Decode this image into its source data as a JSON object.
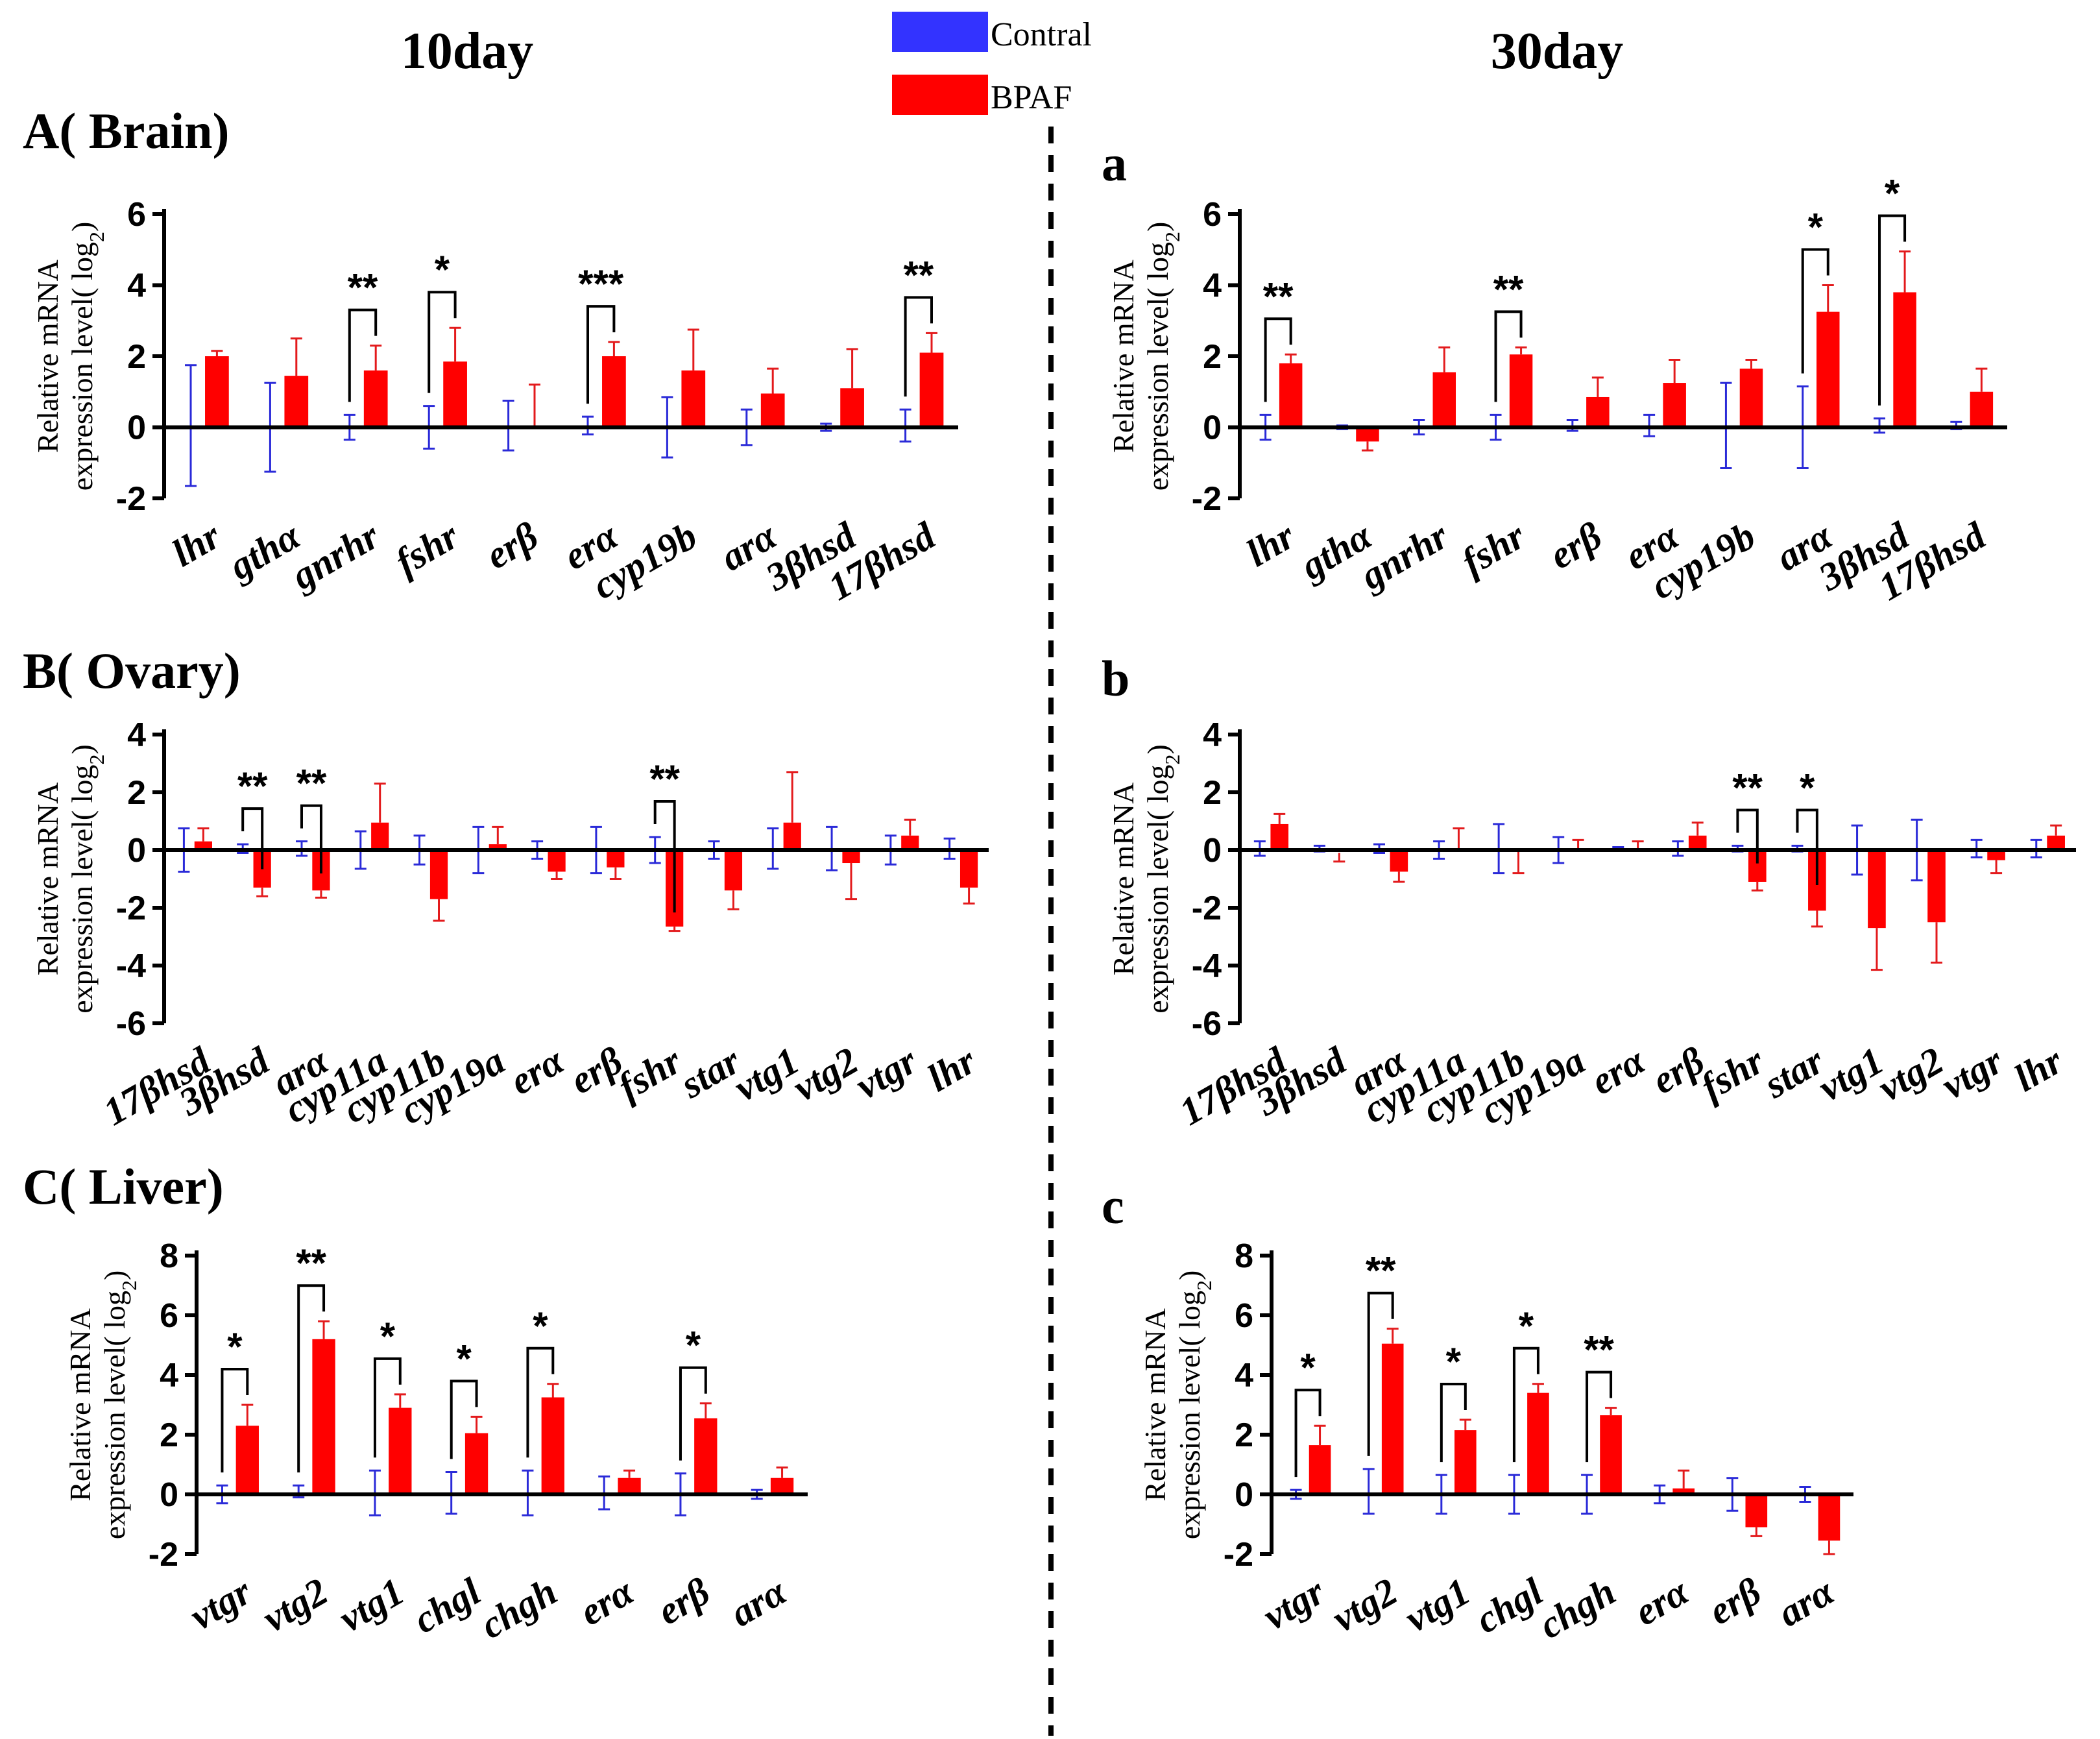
{
  "column_titles": {
    "left": "10day",
    "right": "30day"
  },
  "legend": [
    {
      "name": "Contral",
      "color": "#3333ff"
    },
    {
      "name": "BPAF",
      "color": "#ff0000"
    }
  ],
  "y_axis_label": {
    "line1": "Relative mRNA",
    "line2": "expression level( log",
    "sub": "2",
    "close": ")"
  },
  "colors": {
    "control": "#3333ff",
    "bpaf": "#ff0000",
    "control_err": "#2a2ad8",
    "bpaf_err": "#e31a1c"
  },
  "chart_data": [
    {
      "id": "A",
      "title": "A( Brain)",
      "type": "bar",
      "ylim": [
        -2,
        6
      ],
      "yticks": [
        -2,
        0,
        2,
        4,
        6
      ],
      "categories": [
        "lhr",
        "gthα",
        "gnrhr",
        "fshr",
        "erβ",
        "erα",
        "cyp19b",
        "arα",
        "3βhsd",
        "17βhsd"
      ],
      "series": [
        {
          "name": "Contral",
          "values": [
            0.05,
            0,
            0,
            0,
            0.05,
            0.05,
            0,
            0,
            0,
            0.05
          ],
          "errors": [
            1.7,
            1.25,
            0.35,
            0.6,
            0.7,
            0.25,
            0.85,
            0.5,
            0.1,
            0.45
          ]
        },
        {
          "name": "BPAF",
          "values": [
            2.0,
            1.45,
            1.6,
            1.85,
            0,
            2.0,
            1.6,
            0.95,
            1.1,
            2.1
          ],
          "errors": [
            0.15,
            1.05,
            0.7,
            0.95,
            1.2,
            0.4,
            1.15,
            0.7,
            1.1,
            0.55
          ]
        }
      ],
      "significance": [
        {
          "category": "gnrhr",
          "label": "**"
        },
        {
          "category": "fshr",
          "label": "*"
        },
        {
          "category": "erα",
          "label": "***"
        },
        {
          "category": "17βhsd",
          "label": "**"
        }
      ]
    },
    {
      "id": "a",
      "title": "a",
      "type": "bar",
      "ylim": [
        -2,
        6
      ],
      "yticks": [
        -2,
        0,
        2,
        4,
        6
      ],
      "categories": [
        "lhr",
        "gthα",
        "gnrhr",
        "fshr",
        "erβ",
        "erα",
        "cyp19b",
        "arα",
        "3βhsd",
        "17βhsd"
      ],
      "series": [
        {
          "name": "Contral",
          "values": [
            0,
            0,
            0,
            0,
            0.05,
            0.05,
            0.05,
            0,
            0.05,
            0.05
          ],
          "errors": [
            0.35,
            0.05,
            0.2,
            0.35,
            0.15,
            0.3,
            1.2,
            1.15,
            0.2,
            0.1
          ]
        },
        {
          "name": "BPAF",
          "values": [
            1.8,
            -0.4,
            1.55,
            2.05,
            0.85,
            1.25,
            1.65,
            3.25,
            3.8,
            1.0
          ],
          "errors": [
            0.25,
            0.25,
            0.7,
            0.2,
            0.55,
            0.65,
            0.25,
            0.75,
            1.15,
            0.65
          ]
        }
      ],
      "significance": [
        {
          "category": "lhr",
          "label": "**"
        },
        {
          "category": "fshr",
          "label": "**"
        },
        {
          "category": "arα",
          "label": "*"
        },
        {
          "category": "3βhsd",
          "label": "*"
        }
      ]
    },
    {
      "id": "B",
      "title": "B( Ovary)",
      "type": "bar",
      "ylim": [
        -6,
        4
      ],
      "yticks": [
        -6,
        -4,
        -2,
        0,
        2,
        4
      ],
      "categories": [
        "17βhsd",
        "3βhsd",
        "arα",
        "cyp11a",
        "cyp11b",
        "cyp19a",
        "erα",
        "erβ",
        "fshr",
        "star",
        "vtg1",
        "vtg2",
        "vtgr",
        "lhr"
      ],
      "series": [
        {
          "name": "Contral",
          "values": [
            0,
            0.05,
            0.05,
            0,
            0,
            0,
            0,
            0,
            0,
            0,
            0.05,
            0.05,
            0,
            0.05
          ],
          "errors": [
            0.75,
            0.15,
            0.25,
            0.65,
            0.5,
            0.8,
            0.3,
            0.8,
            0.45,
            0.3,
            0.7,
            0.75,
            0.5,
            0.35
          ]
        },
        {
          "name": "BPAF",
          "values": [
            0.3,
            -1.3,
            -1.4,
            0.95,
            -1.7,
            0.2,
            -0.75,
            -0.6,
            -2.65,
            -1.4,
            0.95,
            -0.45,
            0.5,
            -1.3
          ],
          "errors": [
            0.45,
            0.3,
            0.25,
            1.35,
            0.75,
            0.6,
            0.25,
            0.4,
            0.15,
            0.65,
            1.75,
            1.25,
            0.55,
            0.55
          ]
        }
      ],
      "significance": [
        {
          "category": "3βhsd",
          "label": "**"
        },
        {
          "category": "arα",
          "label": "**"
        },
        {
          "category": "fshr",
          "label": "**"
        }
      ]
    },
    {
      "id": "b",
      "title": "b",
      "type": "bar",
      "ylim": [
        -6,
        4
      ],
      "yticks": [
        -6,
        -4,
        -2,
        0,
        2,
        4
      ],
      "categories": [
        "17βhsd",
        "3βhsd",
        "arα",
        "cyp11a",
        "cyp11b",
        "cyp19a",
        "erα",
        "erβ",
        "fshr",
        "star",
        "vtg1",
        "vtg2",
        "vtgr",
        "lhr"
      ],
      "series": [
        {
          "name": "Contral",
          "values": [
            0.05,
            0.05,
            0.05,
            0,
            0.05,
            0,
            0.05,
            0.05,
            0.05,
            0.05,
            0,
            0,
            0.05,
            0.05
          ],
          "errors": [
            0.25,
            0.1,
            0.15,
            0.3,
            0.85,
            0.45,
            0.05,
            0.25,
            0.1,
            0.1,
            0.85,
            1.05,
            0.3,
            0.3
          ]
        },
        {
          "name": "BPAF",
          "values": [
            0.9,
            -0.1,
            -0.75,
            0,
            -0.05,
            0.05,
            0.05,
            0.5,
            -1.1,
            -2.1,
            -2.7,
            -2.5,
            -0.35,
            0.5
          ],
          "errors": [
            0.35,
            0.3,
            0.35,
            0.75,
            0.75,
            0.3,
            0.25,
            0.45,
            0.3,
            0.55,
            1.45,
            1.4,
            0.45,
            0.35
          ]
        }
      ],
      "significance": [
        {
          "category": "fshr",
          "label": "**"
        },
        {
          "category": "star",
          "label": "*"
        }
      ]
    },
    {
      "id": "C",
      "title": "C( Liver)",
      "type": "bar",
      "ylim": [
        -2,
        8
      ],
      "yticks": [
        -2,
        0,
        2,
        4,
        6,
        8
      ],
      "categories": [
        "vtgr",
        "vtg2",
        "vtg1",
        "chgl",
        "chgh",
        "erα",
        "erβ",
        "arα"
      ],
      "series": [
        {
          "name": "Contral",
          "values": [
            0,
            0.1,
            0.05,
            0.05,
            0.05,
            0.05,
            0,
            0
          ],
          "errors": [
            0.3,
            0.2,
            0.75,
            0.7,
            0.75,
            0.55,
            0.7,
            0.15
          ]
        },
        {
          "name": "BPAF",
          "values": [
            2.3,
            5.2,
            2.9,
            2.05,
            3.25,
            0.55,
            2.55,
            0.55
          ],
          "errors": [
            0.7,
            0.6,
            0.45,
            0.55,
            0.45,
            0.25,
            0.5,
            0.35
          ]
        }
      ],
      "significance": [
        {
          "category": "vtgr",
          "label": "*"
        },
        {
          "category": "vtg2",
          "label": "**"
        },
        {
          "category": "vtg1",
          "label": "*"
        },
        {
          "category": "chgl",
          "label": "*"
        },
        {
          "category": "chgh",
          "label": "*"
        },
        {
          "category": "erβ",
          "label": "*"
        }
      ]
    },
    {
      "id": "c",
      "title": "c",
      "type": "bar",
      "ylim": [
        -2,
        8
      ],
      "yticks": [
        -2,
        0,
        2,
        4,
        6,
        8
      ],
      "categories": [
        "vtgr",
        "vtg2",
        "vtg1",
        "chgl",
        "chgh",
        "erα",
        "erβ",
        "arα"
      ],
      "series": [
        {
          "name": "Contral",
          "values": [
            0,
            0.1,
            0,
            0,
            0,
            0,
            0,
            0
          ],
          "errors": [
            0.15,
            0.75,
            0.65,
            0.65,
            0.65,
            0.3,
            0.55,
            0.25
          ]
        },
        {
          "name": "BPAF",
          "values": [
            1.65,
            5.05,
            2.15,
            3.4,
            2.65,
            0.2,
            -1.1,
            -1.55
          ],
          "errors": [
            0.65,
            0.5,
            0.35,
            0.3,
            0.25,
            0.6,
            0.3,
            0.45
          ]
        }
      ],
      "significance": [
        {
          "category": "vtgr",
          "label": "*"
        },
        {
          "category": "vtg2",
          "label": "**"
        },
        {
          "category": "vtg1",
          "label": "*"
        },
        {
          "category": "chgl",
          "label": "*"
        },
        {
          "category": "chgh",
          "label": "**"
        }
      ]
    }
  ]
}
